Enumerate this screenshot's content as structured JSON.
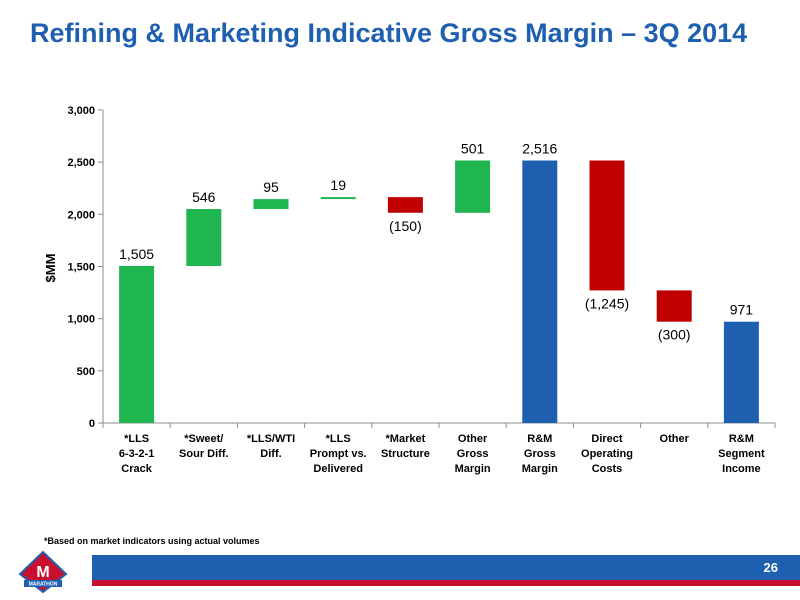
{
  "title": "Refining & Marketing Indicative Gross Margin – 3Q 2014",
  "footnote": "*Based on market indicators using actual volumes",
  "page_number": "26",
  "logo_text": "MARATHON",
  "colors": {
    "increase": "#1fb54f",
    "decrease": "#c00000",
    "total": "#1f5fb0",
    "title": "#1f5fb0"
  },
  "chart_data": {
    "type": "bar",
    "subtype": "waterfall",
    "ylabel": "$MM",
    "ylim": [
      0,
      3000
    ],
    "yticks": [
      0,
      500,
      1000,
      1500,
      2000,
      2500,
      3000
    ],
    "ytick_labels": [
      "0",
      "500",
      "1,000",
      "1,500",
      "2,000",
      "2,500",
      "3,000"
    ],
    "grid": false,
    "categories": [
      [
        "*LLS",
        "6-3-2-1",
        "Crack"
      ],
      [
        "*Sweet/",
        "Sour Diff."
      ],
      [
        "*LLS/WTI",
        "Diff."
      ],
      [
        "*LLS",
        "Prompt vs.",
        "Delivered"
      ],
      [
        "*Market",
        "Structure"
      ],
      [
        "Other",
        "Gross",
        "Margin"
      ],
      [
        "R&M",
        "Gross",
        "Margin"
      ],
      [
        "Direct",
        "Operating",
        "Costs"
      ],
      [
        "Other"
      ],
      [
        "R&M",
        "Segment",
        "Income"
      ]
    ],
    "values": [
      1505,
      546,
      95,
      19,
      -150,
      501,
      2516,
      -1245,
      -300,
      971
    ],
    "kinds": [
      "increase",
      "increase",
      "increase",
      "increase",
      "decrease",
      "increase",
      "total",
      "decrease",
      "decrease",
      "total"
    ],
    "data_labels": [
      "1,505",
      "546",
      "95",
      "19",
      "(150)",
      "501",
      "2,516",
      "(1,245)",
      "(300)",
      "971"
    ]
  }
}
